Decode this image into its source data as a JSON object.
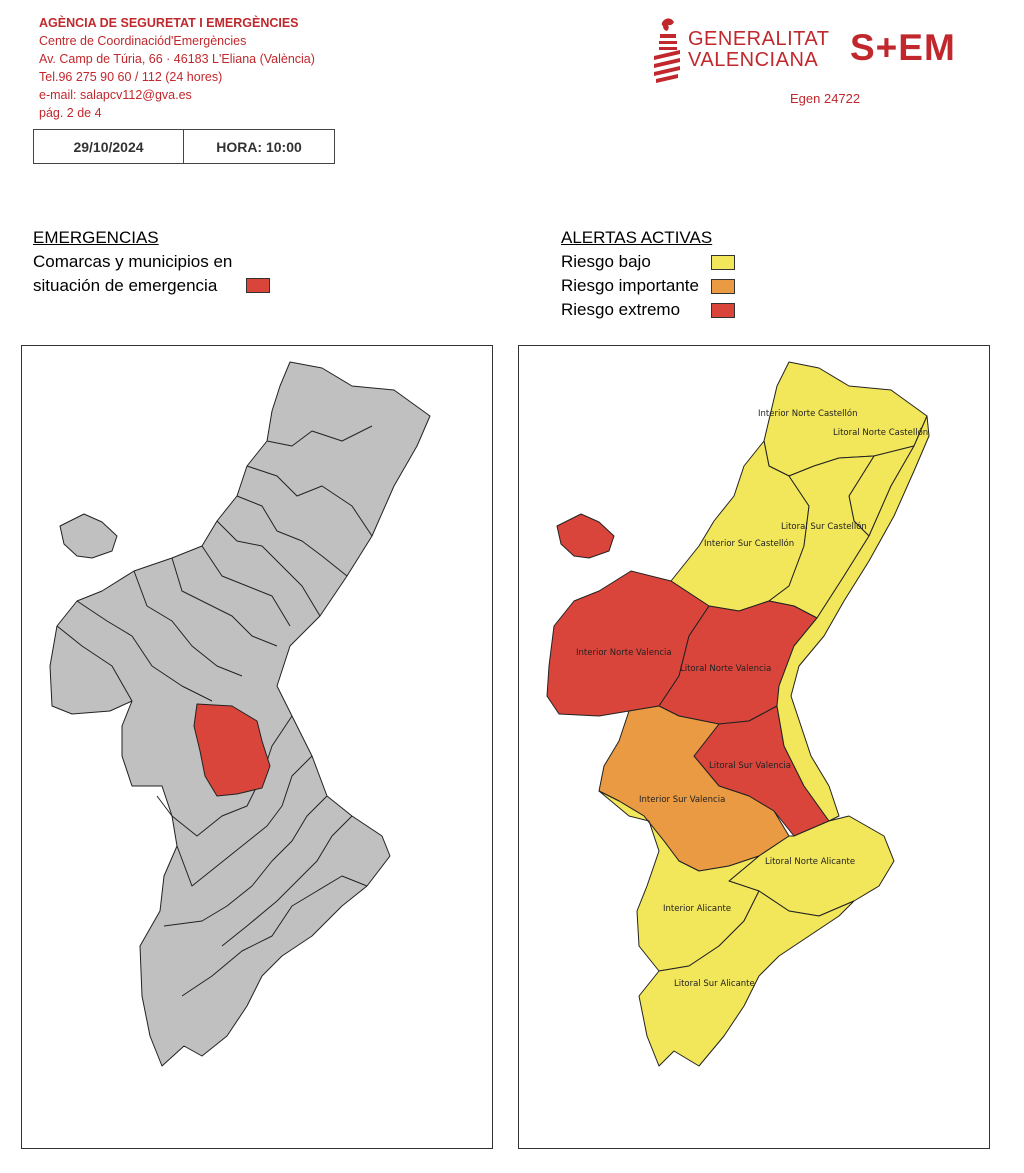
{
  "header": {
    "agency": "AGÈNCIA DE SEGURETAT I EMERGÈNCIES",
    "centre": "Centre de Coordinaciód'Emergències",
    "address": "Av. Camp de Túria, 66 · 46183 L'Eliana (València)",
    "phone": "Tel.96 275 90 60 /  112 (24 hores)",
    "email": "e-mail: salapcv112@gva.es",
    "page": "pág. 2 de 4",
    "date": "29/10/2024",
    "time": "HORA: 10:00"
  },
  "logos": {
    "gv_line1": "GENERALITAT",
    "gv_line2": "VALENCIANA",
    "sem": "S+EM",
    "egen": "Egen 24722"
  },
  "emergencias": {
    "title": "EMERGENCIAS",
    "line1": "Comarcas y municipios en",
    "line2": "situación de emergencia",
    "color": "#d9453b"
  },
  "alertas": {
    "title": "ALERTAS ACTIVAS",
    "items": [
      {
        "label": "Riesgo bajo",
        "color": "#f2e65a"
      },
      {
        "label": "Riesgo importante",
        "color": "#e99a42"
      },
      {
        "label": "Riesgo extremo",
        "color": "#d9453b"
      }
    ]
  },
  "map_left": {
    "base_color": "#c0c0c0",
    "highlight_color": "#d9453b"
  },
  "map_right": {
    "zones": [
      {
        "label": "Interior Norte Castellón",
        "risk": "Riesgo bajo"
      },
      {
        "label": "Litoral Norte Castellón",
        "risk": "Riesgo bajo"
      },
      {
        "label": "Litoral Sur Castellón",
        "risk": "Riesgo bajo"
      },
      {
        "label": "Interior Sur Castellón",
        "risk": "Riesgo bajo"
      },
      {
        "label": "Interior Norte Valencia",
        "risk": "Riesgo extremo"
      },
      {
        "label": "Litoral Norte Valencia",
        "risk": "Riesgo extremo"
      },
      {
        "label": "Litoral Sur Valencia",
        "risk": "Riesgo extremo"
      },
      {
        "label": "Interior Sur Valencia",
        "risk": "Riesgo importante"
      },
      {
        "label": "Litoral Norte Alicante",
        "risk": "Riesgo bajo"
      },
      {
        "label": "Interior Alicante",
        "risk": "Riesgo bajo"
      },
      {
        "label": "Litoral Sur Alicante",
        "risk": "Riesgo bajo"
      }
    ]
  }
}
